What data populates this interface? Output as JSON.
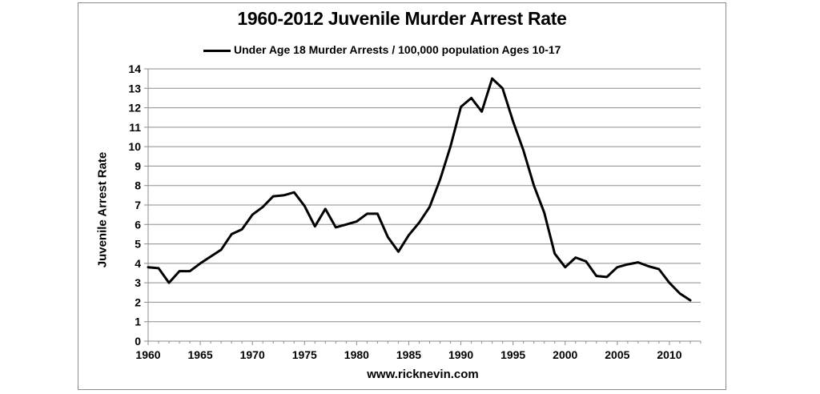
{
  "chart_data": {
    "type": "line",
    "title": "1960-2012 Juvenile Murder Arrest Rate",
    "ylabel": "Juvenile Arrest Rate",
    "xlabel": "",
    "source_note": "www.ricknevin.com",
    "xlim": [
      1960,
      2013
    ],
    "ylim": [
      0,
      14
    ],
    "x_ticks": [
      "1960",
      "1965",
      "1970",
      "1975",
      "1980",
      "1985",
      "1990",
      "1995",
      "2000",
      "2005",
      "2010"
    ],
    "y_ticks": [
      "0",
      "1",
      "2",
      "3",
      "4",
      "5",
      "6",
      "7",
      "8",
      "9",
      "10",
      "11",
      "12",
      "13",
      "14"
    ],
    "grid": "horizontal",
    "legend_position": "top",
    "series": [
      {
        "name": "Under Age 18 Murder Arrests / 100,000 population Ages 10-17",
        "color": "#000000",
        "x": [
          1960,
          1961,
          1962,
          1963,
          1964,
          1965,
          1966,
          1967,
          1968,
          1969,
          1970,
          1971,
          1972,
          1973,
          1974,
          1975,
          1976,
          1977,
          1978,
          1979,
          1980,
          1981,
          1982,
          1983,
          1984,
          1985,
          1986,
          1987,
          1988,
          1989,
          1990,
          1991,
          1992,
          1993,
          1994,
          1995,
          1996,
          1997,
          1998,
          1999,
          2000,
          2001,
          2002,
          2003,
          2004,
          2005,
          2006,
          2007,
          2008,
          2009,
          2010,
          2011,
          2012
        ],
        "values": [
          3.8,
          3.75,
          3.0,
          3.6,
          3.6,
          4.0,
          4.35,
          4.7,
          5.5,
          5.75,
          6.5,
          6.9,
          7.45,
          7.5,
          7.65,
          6.95,
          5.9,
          6.8,
          5.85,
          6.0,
          6.15,
          6.55,
          6.55,
          5.35,
          4.6,
          5.45,
          6.1,
          6.9,
          8.3,
          10.0,
          12.05,
          12.5,
          11.8,
          13.5,
          13.0,
          11.3,
          9.8,
          8.0,
          6.6,
          4.5,
          3.8,
          4.3,
          4.1,
          3.35,
          3.3,
          3.8,
          3.95,
          4.05,
          3.85,
          3.7,
          3.0,
          2.45,
          2.1
        ]
      }
    ]
  }
}
